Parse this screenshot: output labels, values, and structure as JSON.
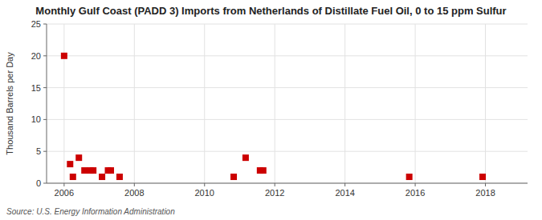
{
  "chart_data": {
    "type": "scatter",
    "title": "Monthly Gulf Coast (PADD 3) Imports from Netherlands of Distillate Fuel Oil, 0 to 15 ppm Sulfur",
    "ylabel": "Thousand Barrels per Day",
    "annotation": "Source: U.S. Energy Information Administration",
    "x": [
      2006.0,
      2006.17,
      2006.25,
      2006.42,
      2006.58,
      2006.75,
      2006.83,
      2007.08,
      2007.25,
      2007.33,
      2007.58,
      2010.83,
      2011.17,
      2011.58,
      2011.67,
      2015.83,
      2017.92
    ],
    "values": [
      20.0,
      3.0,
      1.0,
      4.0,
      2.0,
      2.0,
      2.0,
      1.0,
      2.0,
      2.0,
      1.0,
      1.0,
      4.0,
      2.0,
      2.0,
      1.0,
      1.0
    ],
    "color": "#cc0000",
    "marker": "square",
    "xlim": [
      2005.5,
      2019.2
    ],
    "ylim": [
      0,
      25
    ],
    "xticks": [
      2006,
      2008,
      2010,
      2012,
      2014,
      2016,
      2018
    ],
    "yticks": [
      0,
      5,
      10,
      15,
      20,
      25
    ],
    "grid": true
  }
}
